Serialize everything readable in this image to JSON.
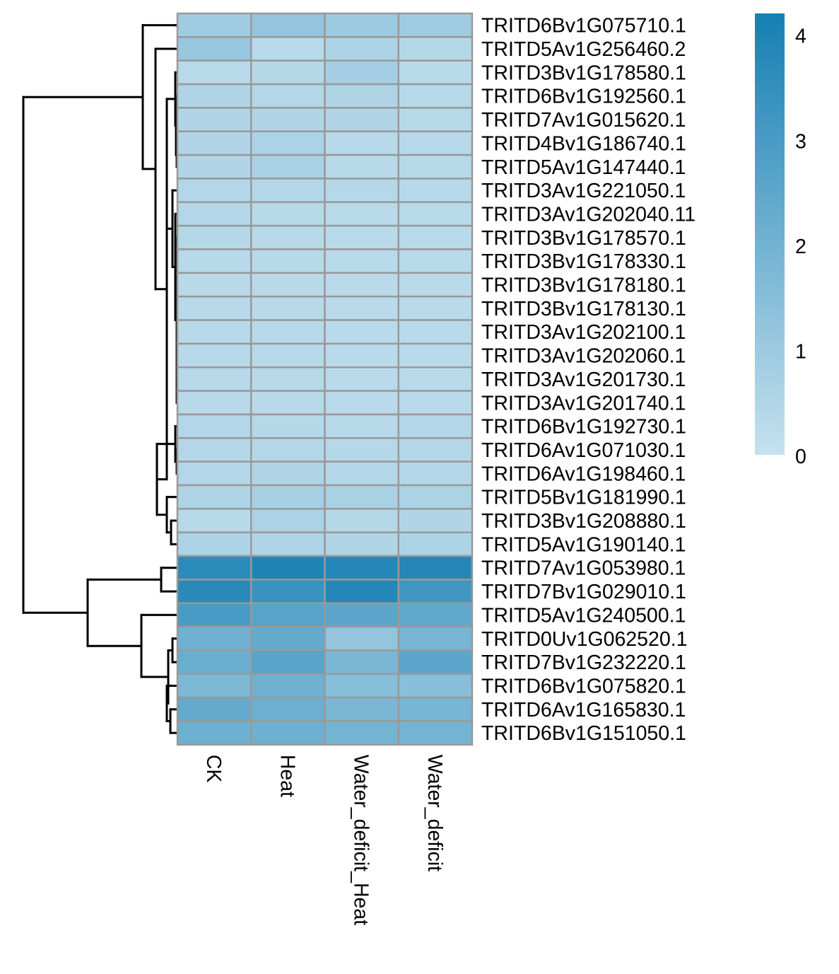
{
  "chart_data": {
    "type": "heatmap",
    "columns": [
      "CK",
      "Heat",
      "Water_deficit_Heat",
      "Water_deficit"
    ],
    "rows": [
      {
        "label": "TRITD6Bv1G075710.1",
        "values": [
          0.9,
          1.2,
          1.0,
          0.9
        ]
      },
      {
        "label": "TRITD5Av1G256460.2",
        "values": [
          1.1,
          0.3,
          0.6,
          0.4
        ]
      },
      {
        "label": "TRITD3Bv1G178580.1",
        "values": [
          0.3,
          0.4,
          0.8,
          0.3
        ]
      },
      {
        "label": "TRITD6Bv1G192560.1",
        "values": [
          0.55,
          0.45,
          0.55,
          0.35
        ]
      },
      {
        "label": "TRITD7Av1G015620.1",
        "values": [
          0.5,
          0.5,
          0.5,
          0.35
        ]
      },
      {
        "label": "TRITD4Bv1G186740.1",
        "values": [
          0.5,
          0.65,
          0.35,
          0.35
        ]
      },
      {
        "label": "TRITD5Av1G147440.1",
        "values": [
          0.5,
          0.7,
          0.35,
          0.35
        ]
      },
      {
        "label": "TRITD3Av1G221050.1",
        "values": [
          0.45,
          0.45,
          0.4,
          0.35
        ]
      },
      {
        "label": "TRITD3Av1G202040.11",
        "values": [
          0.45,
          0.35,
          0.3,
          0.3
        ]
      },
      {
        "label": "TRITD3Bv1G178570.1",
        "values": [
          0.4,
          0.35,
          0.3,
          0.3
        ]
      },
      {
        "label": "TRITD3Bv1G178330.1",
        "values": [
          0.35,
          0.35,
          0.3,
          0.3
        ]
      },
      {
        "label": "TRITD3Bv1G178180.1",
        "values": [
          0.35,
          0.35,
          0.3,
          0.3
        ]
      },
      {
        "label": "TRITD3Bv1G178130.1",
        "values": [
          0.35,
          0.35,
          0.3,
          0.3
        ]
      },
      {
        "label": "TRITD3Av1G202100.1",
        "values": [
          0.35,
          0.35,
          0.3,
          0.3
        ]
      },
      {
        "label": "TRITD3Av1G202060.1",
        "values": [
          0.35,
          0.35,
          0.3,
          0.3
        ]
      },
      {
        "label": "TRITD3Av1G201730.1",
        "values": [
          0.35,
          0.35,
          0.3,
          0.3
        ]
      },
      {
        "label": "TRITD3Av1G201740.1",
        "values": [
          0.35,
          0.35,
          0.3,
          0.3
        ]
      },
      {
        "label": "TRITD6Bv1G192730.1",
        "values": [
          0.45,
          0.4,
          0.35,
          0.45
        ]
      },
      {
        "label": "TRITD6Av1G071030.1",
        "values": [
          0.45,
          0.45,
          0.4,
          0.45
        ]
      },
      {
        "label": "TRITD6Av1G198460.1",
        "values": [
          0.45,
          0.5,
          0.45,
          0.45
        ]
      },
      {
        "label": "TRITD5Bv1G181990.1",
        "values": [
          0.55,
          0.75,
          0.7,
          0.65
        ]
      },
      {
        "label": "TRITD3Bv1G208880.1",
        "values": [
          0.35,
          0.65,
          0.4,
          0.5
        ]
      },
      {
        "label": "TRITD5Av1G190140.1",
        "values": [
          0.6,
          0.55,
          0.5,
          0.6
        ]
      },
      {
        "label": "TRITD7Av1G053980.1",
        "values": [
          3.7,
          4.0,
          3.85,
          3.85
        ]
      },
      {
        "label": "TRITD7Bv1G029010.1",
        "values": [
          3.75,
          3.4,
          3.85,
          3.2
        ]
      },
      {
        "label": "TRITD5Av1G240500.1",
        "values": [
          3.0,
          2.65,
          2.55,
          2.4
        ]
      },
      {
        "label": "TRITD0Uv1G062520.1",
        "values": [
          2.05,
          2.35,
          1.2,
          1.9
        ]
      },
      {
        "label": "TRITD7Bv1G232220.1",
        "values": [
          2.2,
          2.6,
          1.8,
          2.55
        ]
      },
      {
        "label": "TRITD6Bv1G075820.1",
        "values": [
          1.75,
          2.05,
          1.5,
          1.5
        ]
      },
      {
        "label": "TRITD6Av1G165830.1",
        "values": [
          2.35,
          2.15,
          1.8,
          1.9
        ]
      },
      {
        "label": "TRITD6Bv1G151050.1",
        "values": [
          2.1,
          2.1,
          1.95,
          1.95
        ]
      }
    ],
    "color_scale": {
      "min": 0,
      "max": 4.2,
      "low_color": "#c6e1ee",
      "high_color": "#167fb3",
      "ticks": [
        0,
        1,
        2,
        3,
        4
      ]
    },
    "cell_border_color": "#999999"
  }
}
